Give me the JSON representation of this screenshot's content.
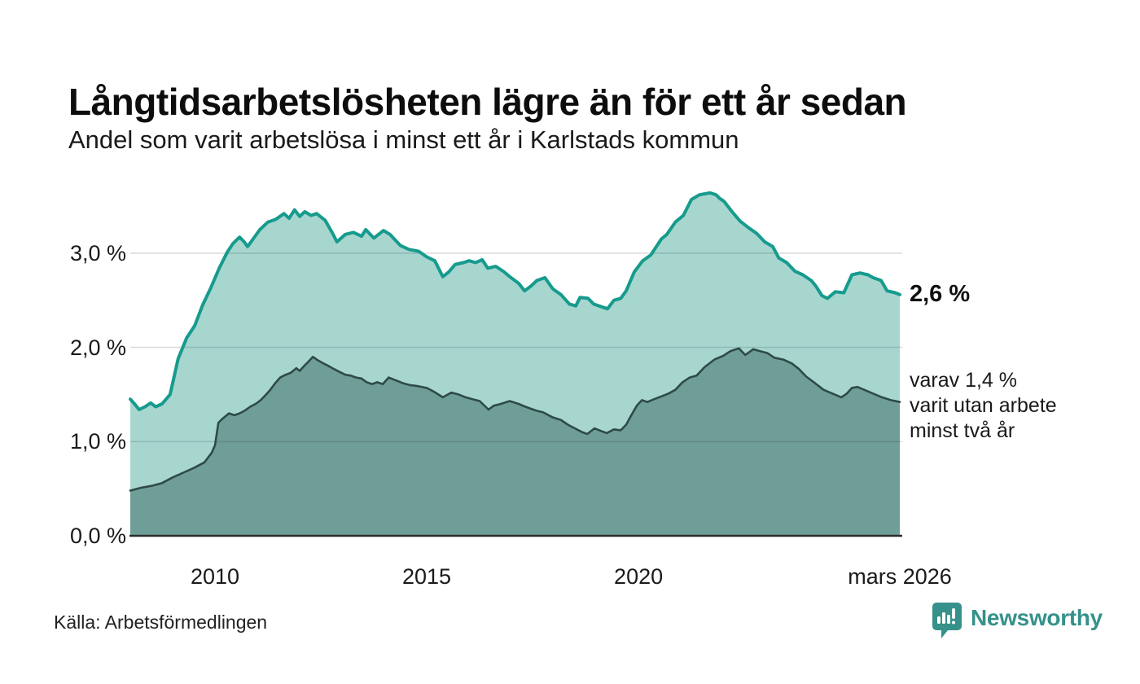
{
  "chart_data": {
    "type": "area",
    "title": "Långtidsarbetslösheten lägre än för ett år sedan",
    "subtitle": "Andel som varit arbetslösa i minst ett år i Karlstads kommun",
    "source": "Källa: Arbetsförmedlingen",
    "x_axis": {
      "range": [
        2008.0,
        2026.17
      ],
      "ticks": [
        {
          "label": "2010",
          "year": 2010
        },
        {
          "label": "2015",
          "year": 2015
        },
        {
          "label": "2020",
          "year": 2020
        },
        {
          "label": "mars 2026",
          "year": 2026.17
        }
      ]
    },
    "y_axis": {
      "unit": "%",
      "ticks": [
        {
          "label": "0,0 %",
          "value": 0
        },
        {
          "label": "1,0 %",
          "value": 1
        },
        {
          "label": "2,0 %",
          "value": 2
        },
        {
          "label": "3,0 %",
          "value": 3
        }
      ],
      "gridlines": [
        1,
        2,
        3
      ],
      "range": [
        0,
        3.8
      ]
    },
    "end_labels": {
      "total": "2,6 %",
      "sub": [
        "varav 1,4 %",
        "varit utan arbete",
        "minst två år"
      ]
    },
    "grid_color": "rgba(40,40,60,0.16)",
    "baseline_color": "#2c2c2c",
    "series": [
      {
        "name": "Andel arbetslösa minst ett år",
        "line_color": "#169b8d",
        "fill_color": "#a7d6cf",
        "latest_value": 2.6,
        "points": [
          [
            2008.0,
            1.45
          ],
          [
            2008.1,
            1.4
          ],
          [
            2008.21,
            1.34
          ],
          [
            2008.35,
            1.37
          ],
          [
            2008.48,
            1.41
          ],
          [
            2008.6,
            1.37
          ],
          [
            2008.75,
            1.4
          ],
          [
            2008.94,
            1.5
          ],
          [
            2009.13,
            1.88
          ],
          [
            2009.33,
            2.1
          ],
          [
            2009.52,
            2.23
          ],
          [
            2009.71,
            2.45
          ],
          [
            2009.9,
            2.63
          ],
          [
            2010.1,
            2.84
          ],
          [
            2010.29,
            3.01
          ],
          [
            2010.42,
            3.1
          ],
          [
            2010.58,
            3.17
          ],
          [
            2010.69,
            3.12
          ],
          [
            2010.77,
            3.07
          ],
          [
            2010.9,
            3.15
          ],
          [
            2011.06,
            3.25
          ],
          [
            2011.25,
            3.33
          ],
          [
            2011.44,
            3.36
          ],
          [
            2011.63,
            3.42
          ],
          [
            2011.75,
            3.37
          ],
          [
            2011.88,
            3.46
          ],
          [
            2012.0,
            3.39
          ],
          [
            2012.12,
            3.44
          ],
          [
            2012.27,
            3.4
          ],
          [
            2012.4,
            3.42
          ],
          [
            2012.6,
            3.35
          ],
          [
            2012.79,
            3.2
          ],
          [
            2012.88,
            3.12
          ],
          [
            2013.08,
            3.2
          ],
          [
            2013.27,
            3.22
          ],
          [
            2013.46,
            3.18
          ],
          [
            2013.56,
            3.25
          ],
          [
            2013.75,
            3.16
          ],
          [
            2013.98,
            3.24
          ],
          [
            2014.13,
            3.2
          ],
          [
            2014.38,
            3.08
          ],
          [
            2014.58,
            3.04
          ],
          [
            2014.81,
            3.02
          ],
          [
            2015.0,
            2.96
          ],
          [
            2015.19,
            2.92
          ],
          [
            2015.38,
            2.75
          ],
          [
            2015.52,
            2.8
          ],
          [
            2015.67,
            2.88
          ],
          [
            2015.87,
            2.9
          ],
          [
            2016.0,
            2.92
          ],
          [
            2016.15,
            2.9
          ],
          [
            2016.31,
            2.93
          ],
          [
            2016.44,
            2.84
          ],
          [
            2016.63,
            2.86
          ],
          [
            2016.83,
            2.8
          ],
          [
            2016.96,
            2.75
          ],
          [
            2017.17,
            2.68
          ],
          [
            2017.31,
            2.6
          ],
          [
            2017.46,
            2.65
          ],
          [
            2017.6,
            2.71
          ],
          [
            2017.79,
            2.74
          ],
          [
            2017.98,
            2.62
          ],
          [
            2018.17,
            2.56
          ],
          [
            2018.37,
            2.46
          ],
          [
            2018.52,
            2.44
          ],
          [
            2018.62,
            2.53
          ],
          [
            2018.81,
            2.52
          ],
          [
            2018.94,
            2.46
          ],
          [
            2019.13,
            2.43
          ],
          [
            2019.27,
            2.41
          ],
          [
            2019.42,
            2.5
          ],
          [
            2019.58,
            2.52
          ],
          [
            2019.71,
            2.6
          ],
          [
            2019.9,
            2.8
          ],
          [
            2020.1,
            2.92
          ],
          [
            2020.29,
            2.98
          ],
          [
            2020.54,
            3.15
          ],
          [
            2020.67,
            3.2
          ],
          [
            2020.87,
            3.33
          ],
          [
            2021.06,
            3.4
          ],
          [
            2021.25,
            3.57
          ],
          [
            2021.44,
            3.62
          ],
          [
            2021.69,
            3.64
          ],
          [
            2021.83,
            3.62
          ],
          [
            2021.92,
            3.58
          ],
          [
            2022.02,
            3.55
          ],
          [
            2022.21,
            3.44
          ],
          [
            2022.4,
            3.34
          ],
          [
            2022.6,
            3.27
          ],
          [
            2022.79,
            3.21
          ],
          [
            2022.98,
            3.12
          ],
          [
            2023.17,
            3.07
          ],
          [
            2023.31,
            2.95
          ],
          [
            2023.5,
            2.9
          ],
          [
            2023.69,
            2.81
          ],
          [
            2023.88,
            2.77
          ],
          [
            2024.08,
            2.71
          ],
          [
            2024.19,
            2.65
          ],
          [
            2024.33,
            2.55
          ],
          [
            2024.46,
            2.52
          ],
          [
            2024.65,
            2.59
          ],
          [
            2024.85,
            2.58
          ],
          [
            2025.04,
            2.77
          ],
          [
            2025.23,
            2.79
          ],
          [
            2025.42,
            2.77
          ],
          [
            2025.54,
            2.74
          ],
          [
            2025.73,
            2.71
          ],
          [
            2025.87,
            2.6
          ],
          [
            2026.06,
            2.58
          ],
          [
            2026.17,
            2.56
          ]
        ]
      },
      {
        "name": "varav arbetslösa minst två år",
        "line_color": "#2e4b47",
        "fill_color": "#6f9e98",
        "latest_value": 1.4,
        "points": [
          [
            2008.0,
            0.48
          ],
          [
            2008.25,
            0.51
          ],
          [
            2008.5,
            0.53
          ],
          [
            2008.75,
            0.56
          ],
          [
            2009.0,
            0.62
          ],
          [
            2009.25,
            0.67
          ],
          [
            2009.5,
            0.72
          ],
          [
            2009.75,
            0.78
          ],
          [
            2009.92,
            0.88
          ],
          [
            2010.0,
            0.96
          ],
          [
            2010.08,
            1.2
          ],
          [
            2010.17,
            1.24
          ],
          [
            2010.33,
            1.3
          ],
          [
            2010.46,
            1.28
          ],
          [
            2010.58,
            1.3
          ],
          [
            2010.71,
            1.33
          ],
          [
            2010.83,
            1.37
          ],
          [
            2010.96,
            1.4
          ],
          [
            2011.08,
            1.44
          ],
          [
            2011.21,
            1.5
          ],
          [
            2011.29,
            1.54
          ],
          [
            2011.42,
            1.62
          ],
          [
            2011.54,
            1.68
          ],
          [
            2011.67,
            1.71
          ],
          [
            2011.79,
            1.73
          ],
          [
            2011.92,
            1.78
          ],
          [
            2012.0,
            1.75
          ],
          [
            2012.1,
            1.8
          ],
          [
            2012.19,
            1.84
          ],
          [
            2012.31,
            1.9
          ],
          [
            2012.44,
            1.86
          ],
          [
            2012.56,
            1.83
          ],
          [
            2012.69,
            1.8
          ],
          [
            2012.81,
            1.77
          ],
          [
            2012.94,
            1.74
          ],
          [
            2013.08,
            1.71
          ],
          [
            2013.21,
            1.7
          ],
          [
            2013.33,
            1.68
          ],
          [
            2013.46,
            1.67
          ],
          [
            2013.58,
            1.63
          ],
          [
            2013.71,
            1.61
          ],
          [
            2013.83,
            1.63
          ],
          [
            2013.96,
            1.61
          ],
          [
            2014.1,
            1.68
          ],
          [
            2014.27,
            1.65
          ],
          [
            2014.44,
            1.62
          ],
          [
            2014.6,
            1.6
          ],
          [
            2014.77,
            1.59
          ],
          [
            2015.0,
            1.57
          ],
          [
            2015.17,
            1.53
          ],
          [
            2015.38,
            1.47
          ],
          [
            2015.58,
            1.52
          ],
          [
            2015.75,
            1.5
          ],
          [
            2015.92,
            1.47
          ],
          [
            2016.08,
            1.45
          ],
          [
            2016.25,
            1.43
          ],
          [
            2016.46,
            1.34
          ],
          [
            2016.58,
            1.38
          ],
          [
            2016.75,
            1.4
          ],
          [
            2016.96,
            1.43
          ],
          [
            2017.17,
            1.4
          ],
          [
            2017.33,
            1.37
          ],
          [
            2017.58,
            1.33
          ],
          [
            2017.75,
            1.31
          ],
          [
            2017.96,
            1.26
          ],
          [
            2018.17,
            1.23
          ],
          [
            2018.33,
            1.18
          ],
          [
            2018.5,
            1.14
          ],
          [
            2018.67,
            1.1
          ],
          [
            2018.79,
            1.08
          ],
          [
            2018.96,
            1.14
          ],
          [
            2019.13,
            1.11
          ],
          [
            2019.25,
            1.09
          ],
          [
            2019.42,
            1.13
          ],
          [
            2019.58,
            1.12
          ],
          [
            2019.71,
            1.18
          ],
          [
            2019.83,
            1.28
          ],
          [
            2019.96,
            1.38
          ],
          [
            2020.08,
            1.44
          ],
          [
            2020.21,
            1.42
          ],
          [
            2020.37,
            1.45
          ],
          [
            2020.54,
            1.48
          ],
          [
            2020.71,
            1.51
          ],
          [
            2020.87,
            1.55
          ],
          [
            2021.04,
            1.63
          ],
          [
            2021.21,
            1.68
          ],
          [
            2021.37,
            1.7
          ],
          [
            2021.56,
            1.79
          ],
          [
            2021.79,
            1.87
          ],
          [
            2022.0,
            1.91
          ],
          [
            2022.17,
            1.96
          ],
          [
            2022.37,
            1.99
          ],
          [
            2022.52,
            1.92
          ],
          [
            2022.71,
            1.98
          ],
          [
            2022.87,
            1.96
          ],
          [
            2023.04,
            1.94
          ],
          [
            2023.21,
            1.89
          ],
          [
            2023.42,
            1.87
          ],
          [
            2023.62,
            1.83
          ],
          [
            2023.79,
            1.77
          ],
          [
            2023.96,
            1.69
          ],
          [
            2024.17,
            1.62
          ],
          [
            2024.37,
            1.55
          ],
          [
            2024.58,
            1.51
          ],
          [
            2024.79,
            1.47
          ],
          [
            2024.92,
            1.51
          ],
          [
            2025.04,
            1.57
          ],
          [
            2025.17,
            1.58
          ],
          [
            2025.33,
            1.55
          ],
          [
            2025.54,
            1.51
          ],
          [
            2025.75,
            1.47
          ],
          [
            2025.96,
            1.44
          ],
          [
            2026.17,
            1.42
          ]
        ]
      }
    ]
  },
  "brand": {
    "name": "Newsworthy",
    "color": "#35918a"
  }
}
